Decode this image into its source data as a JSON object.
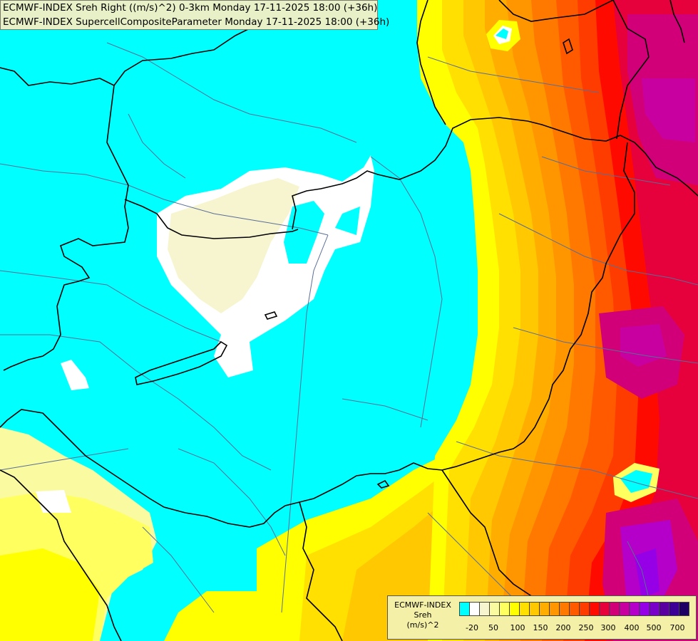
{
  "header": {
    "line1": "ECMWF-INDEX Sreh Right ((m/s)^2) 0-3km Monday 17-11-2025 18:00 (+36h)",
    "line2": "ECMWF-INDEX SupercellCompositeParameter Monday 17-11-2025 18:00 (+36h)"
  },
  "legend": {
    "title1": "ECMWF-INDEX",
    "title2": "Sreh",
    "title3": "(m/s)^2",
    "colors": [
      "#00ffff",
      "#ffffff",
      "#f7f5d0",
      "#fafaa0",
      "#ffff60",
      "#ffff00",
      "#ffe000",
      "#ffc800",
      "#ffae00",
      "#ff9600",
      "#ff7800",
      "#ff5a00",
      "#ff3c00",
      "#ff0a00",
      "#e6003c",
      "#d20078",
      "#c800a0",
      "#b400c8",
      "#9600e6",
      "#7800c8",
      "#5a00a0",
      "#3c0096",
      "#1e0064"
    ],
    "ticks": [
      "-20",
      "50",
      "100",
      "150",
      "200",
      "250",
      "300",
      "400",
      "500",
      "700"
    ]
  },
  "colors": {
    "outside": "#00ffff",
    "border": "#000000",
    "river": "#5a6e96"
  }
}
